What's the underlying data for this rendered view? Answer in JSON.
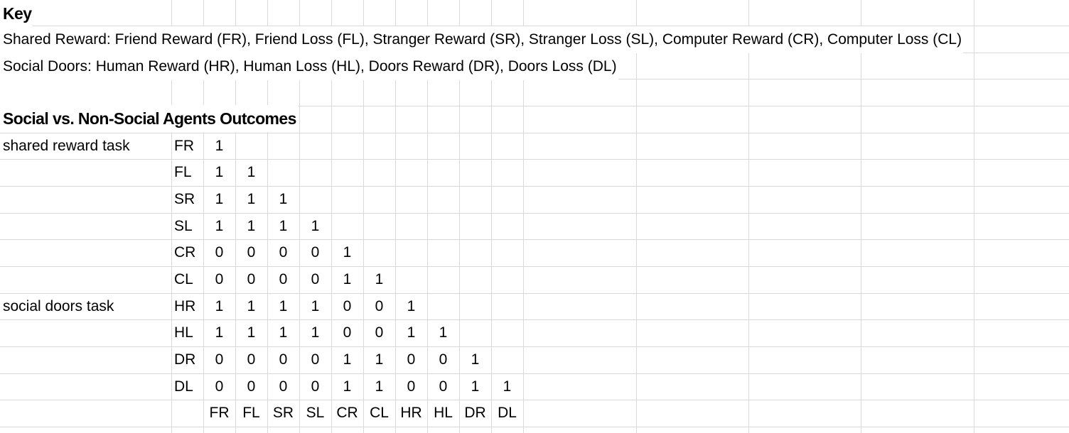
{
  "key_title": "Key",
  "key_lines": [
    "Shared Reward: Friend Reward (FR), Friend Loss (FL), Stranger Reward (SR), Stranger Loss (SL), Computer Reward (CR), Computer Loss (CL)",
    "Social Doors: Human Reward (HR), Human Loss (HL), Doors Reward (DR), Doors Loss (DL)"
  ],
  "section_title": "Social vs. Non-Social Agents Outcomes",
  "task_labels": [
    {
      "row": 0,
      "text": "shared reward task"
    },
    {
      "row": 6,
      "text": "social doors task"
    }
  ],
  "row_labels": [
    "FR",
    "FL",
    "SR",
    "SL",
    "CR",
    "CL",
    "HR",
    "HL",
    "DR",
    "DL"
  ],
  "column_labels": [
    "FR",
    "FL",
    "SR",
    "SL",
    "CR",
    "CL",
    "HR",
    "HL",
    "DR",
    "DL"
  ],
  "matrix": [
    [
      1
    ],
    [
      1,
      1
    ],
    [
      1,
      1,
      1
    ],
    [
      1,
      1,
      1,
      1
    ],
    [
      0,
      0,
      0,
      0,
      1
    ],
    [
      0,
      0,
      0,
      0,
      1,
      1
    ],
    [
      1,
      1,
      1,
      1,
      0,
      0,
      1
    ],
    [
      1,
      1,
      1,
      1,
      0,
      0,
      1,
      1
    ],
    [
      0,
      0,
      0,
      0,
      1,
      1,
      0,
      0,
      1
    ],
    [
      0,
      0,
      0,
      0,
      1,
      1,
      0,
      0,
      1,
      1
    ]
  ]
}
